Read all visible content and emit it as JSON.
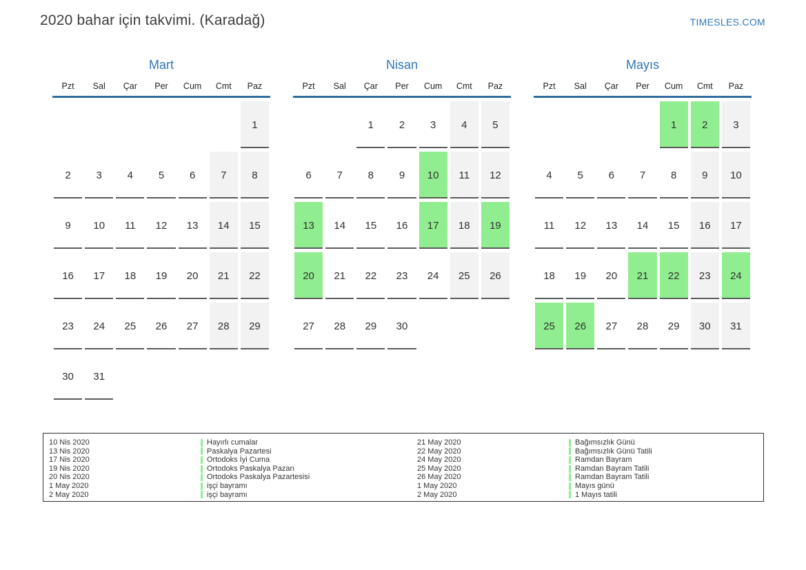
{
  "header": {
    "title": "2020 bahar için takvimi. (Karadağ)",
    "site": "TIMESLES.COM"
  },
  "weekdays": [
    "Pzt",
    "Sal",
    "Çar",
    "Per",
    "Cum",
    "Cmt",
    "Paz"
  ],
  "colors": {
    "accent_blue": "#2e75b6",
    "header_rule_blue": "#2f6ca3",
    "holiday_highlight_green": "#90ee90",
    "weekend_gray": "#f2f2f2",
    "cell_underline": "#5a5a5a",
    "legend_marker_green": "#90ee90"
  },
  "months": [
    {
      "name": "Mart",
      "weeks": [
        [
          null,
          null,
          null,
          null,
          null,
          null,
          {
            "d": 1,
            "k": "we"
          }
        ],
        [
          {
            "d": 2
          },
          {
            "d": 3
          },
          {
            "d": 4
          },
          {
            "d": 5
          },
          {
            "d": 6
          },
          {
            "d": 7,
            "k": "we"
          },
          {
            "d": 8,
            "k": "we"
          }
        ],
        [
          {
            "d": 9
          },
          {
            "d": 10
          },
          {
            "d": 11
          },
          {
            "d": 12
          },
          {
            "d": 13
          },
          {
            "d": 14,
            "k": "we"
          },
          {
            "d": 15,
            "k": "we"
          }
        ],
        [
          {
            "d": 16
          },
          {
            "d": 17
          },
          {
            "d": 18
          },
          {
            "d": 19
          },
          {
            "d": 20
          },
          {
            "d": 21,
            "k": "we"
          },
          {
            "d": 22,
            "k": "we"
          }
        ],
        [
          {
            "d": 23
          },
          {
            "d": 24
          },
          {
            "d": 25
          },
          {
            "d": 26
          },
          {
            "d": 27
          },
          {
            "d": 28,
            "k": "we"
          },
          {
            "d": 29,
            "k": "we"
          }
        ],
        [
          {
            "d": 30
          },
          {
            "d": 31
          },
          null,
          null,
          null,
          null,
          null
        ]
      ]
    },
    {
      "name": "Nisan",
      "weeks": [
        [
          null,
          null,
          {
            "d": 1
          },
          {
            "d": 2
          },
          {
            "d": 3
          },
          {
            "d": 4,
            "k": "we"
          },
          {
            "d": 5,
            "k": "we"
          }
        ],
        [
          {
            "d": 6
          },
          {
            "d": 7
          },
          {
            "d": 8
          },
          {
            "d": 9
          },
          {
            "d": 10,
            "k": "hl"
          },
          {
            "d": 11,
            "k": "we"
          },
          {
            "d": 12,
            "k": "we"
          }
        ],
        [
          {
            "d": 13,
            "k": "hl"
          },
          {
            "d": 14
          },
          {
            "d": 15
          },
          {
            "d": 16
          },
          {
            "d": 17,
            "k": "hl"
          },
          {
            "d": 18,
            "k": "we"
          },
          {
            "d": 19,
            "k": "hl"
          }
        ],
        [
          {
            "d": 20,
            "k": "hl"
          },
          {
            "d": 21
          },
          {
            "d": 22
          },
          {
            "d": 23
          },
          {
            "d": 24
          },
          {
            "d": 25,
            "k": "we"
          },
          {
            "d": 26,
            "k": "we"
          }
        ],
        [
          {
            "d": 27
          },
          {
            "d": 28
          },
          {
            "d": 29
          },
          {
            "d": 30
          },
          null,
          null,
          null
        ]
      ]
    },
    {
      "name": "Mayıs",
      "weeks": [
        [
          null,
          null,
          null,
          null,
          {
            "d": 1,
            "k": "hl"
          },
          {
            "d": 2,
            "k": "hl"
          },
          {
            "d": 3,
            "k": "we"
          }
        ],
        [
          {
            "d": 4
          },
          {
            "d": 5
          },
          {
            "d": 6
          },
          {
            "d": 7
          },
          {
            "d": 8
          },
          {
            "d": 9,
            "k": "we"
          },
          {
            "d": 10,
            "k": "we"
          }
        ],
        [
          {
            "d": 11
          },
          {
            "d": 12
          },
          {
            "d": 13
          },
          {
            "d": 14
          },
          {
            "d": 15
          },
          {
            "d": 16,
            "k": "we"
          },
          {
            "d": 17,
            "k": "we"
          }
        ],
        [
          {
            "d": 18
          },
          {
            "d": 19
          },
          {
            "d": 20
          },
          {
            "d": 21,
            "k": "hl"
          },
          {
            "d": 22,
            "k": "hl"
          },
          {
            "d": 23,
            "k": "we"
          },
          {
            "d": 24,
            "k": "hl"
          }
        ],
        [
          {
            "d": 25,
            "k": "hl"
          },
          {
            "d": 26,
            "k": "hl"
          },
          {
            "d": 27
          },
          {
            "d": 28
          },
          {
            "d": 29
          },
          {
            "d": 30,
            "k": "we"
          },
          {
            "d": 31,
            "k": "we"
          }
        ]
      ]
    }
  ],
  "legend": {
    "groups": [
      {
        "rows": [
          {
            "date": "10 Nis 2020",
            "name": "Hayırlı cumalar"
          },
          {
            "date": "13 Nis 2020",
            "name": "Paskalya Pazartesi"
          },
          {
            "date": "17 Nis 2020",
            "name": "Ortodoks İyi Cuma"
          },
          {
            "date": "19 Nis 2020",
            "name": "Ortodoks Paskalya Pazarı"
          },
          {
            "date": "20 Nis 2020",
            "name": "Ortodoks Paskalya Pazartesisi"
          },
          {
            "date": "1 May 2020",
            "name": "işçi bayramı"
          },
          {
            "date": "2 May 2020",
            "name": "işçi bayramı"
          }
        ]
      },
      {
        "rows": [
          {
            "date": "21 May 2020",
            "name": "Bağımsızlık Günü"
          },
          {
            "date": "22 May 2020",
            "name": "Bağımsızlık Günü Tatili"
          },
          {
            "date": "24 May 2020",
            "name": "Ramdan Bayram"
          },
          {
            "date": "25 May 2020",
            "name": "Ramdan Bayram Tatili"
          },
          {
            "date": "26 May 2020",
            "name": "Ramdan Bayram Tatili"
          },
          {
            "date": "1 May 2020",
            "name": "Mayıs günü"
          },
          {
            "date": "2 May 2020",
            "name": "1 Mayıs tatili"
          }
        ]
      }
    ]
  }
}
